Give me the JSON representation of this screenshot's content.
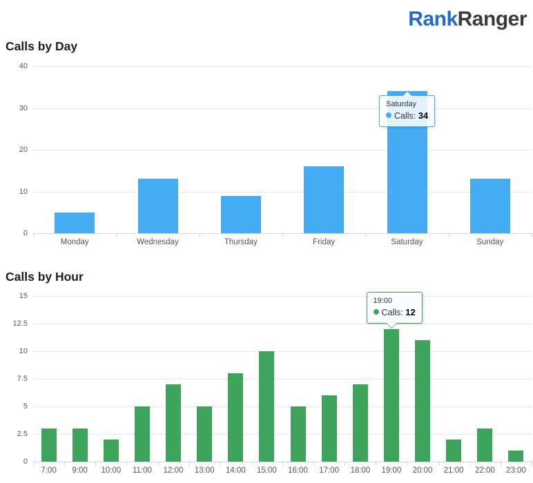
{
  "logo": {
    "brand_part1": "Rank",
    "brand_part2": "Ranger"
  },
  "colors": {
    "logo_blue": "#2569cf",
    "logo_dark": "#3a3a3c",
    "bar_blue": "#45abf2",
    "bar_green": "#3fa45b",
    "gridline": "#e6e6e6",
    "axis_line": "#ccd6eb",
    "axis_label": "#555555",
    "title_text": "#1e1e1e"
  },
  "chart_data": [
    {
      "type": "bar",
      "title": "Calls by Day",
      "categories": [
        "Monday",
        "Wednesday",
        "Thursday",
        "Friday",
        "Saturday",
        "Sunday"
      ],
      "series": [
        {
          "name": "Calls",
          "color": "#45abf2",
          "values": [
            5,
            13,
            9,
            16,
            34,
            13
          ]
        }
      ],
      "xlabel": "",
      "ylabel": "",
      "ylim": [
        0,
        40
      ],
      "y_ticks": [
        0,
        10,
        20,
        30,
        40
      ],
      "grid": true,
      "legend": "none",
      "tooltip": {
        "category": "Saturday",
        "series": "Calls",
        "value": 34
      }
    },
    {
      "type": "bar",
      "title": "Calls by Hour",
      "categories": [
        "7:00",
        "9:00",
        "10:00",
        "11:00",
        "12:00",
        "13:00",
        "14:00",
        "15:00",
        "16:00",
        "17:00",
        "18:00",
        "19:00",
        "20:00",
        "21:00",
        "22:00",
        "23:00"
      ],
      "series": [
        {
          "name": "Calls",
          "color": "#3fa45b",
          "values": [
            3,
            3,
            2,
            5,
            7,
            5,
            8,
            10,
            5,
            6,
            7,
            12,
            11,
            2,
            3,
            1
          ]
        }
      ],
      "xlabel": "",
      "ylabel": "",
      "ylim": [
        0,
        15
      ],
      "y_ticks": [
        0,
        2.5,
        5,
        7.5,
        10,
        12.5,
        15
      ],
      "grid": true,
      "legend": "none",
      "tooltip": {
        "category": "19:00",
        "series": "Calls",
        "value": 12
      }
    }
  ]
}
